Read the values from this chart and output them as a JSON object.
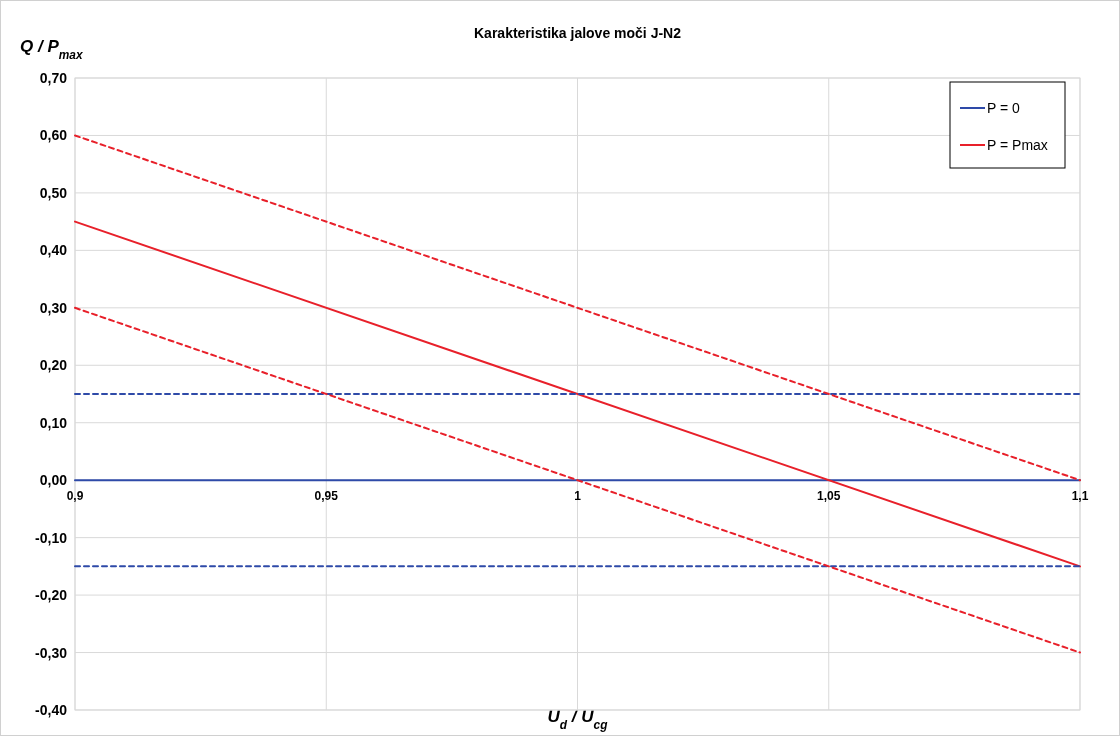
{
  "chart_data": {
    "type": "line",
    "title": "Karakteristika jalove moči J-N2",
    "xlabel": "U$_{d}$ / U$_{cg}$",
    "ylabel": "Q / P$_{max}$",
    "x": [
      0.9,
      1.1
    ],
    "series": [
      {
        "name": "P = 0",
        "color": "#2e4aa8",
        "values": [
          0,
          0
        ],
        "line_style": "solid"
      },
      {
        "name": "P = Pmax",
        "color": "#e8202a",
        "values": [
          0.45,
          -0.15
        ],
        "line_style": "solid"
      },
      {
        "color": "#2e4aa8",
        "values": [
          0.15,
          0.15
        ],
        "line_style": "dashed"
      },
      {
        "color": "#2e4aa8",
        "values": [
          -0.15,
          -0.15
        ],
        "line_style": "dashed"
      },
      {
        "color": "#e8202a",
        "values": [
          0.6,
          0
        ],
        "line_style": "dashed"
      },
      {
        "color": "#e8202a",
        "values": [
          0.3,
          -0.3
        ],
        "line_style": "dashed"
      }
    ],
    "xlim": [
      0.9,
      1.1
    ],
    "xticks": [
      {
        "value": 0.9,
        "label": "0,9"
      },
      {
        "value": 0.95,
        "label": "0,95"
      },
      {
        "value": 1,
        "label": "1"
      },
      {
        "value": 1.05,
        "label": "1,05"
      },
      {
        "value": 1.1,
        "label": "1,1"
      }
    ],
    "ylim": [
      -0.4,
      0.7
    ],
    "yticks": [
      {
        "value": -0.4,
        "label": "-0,40"
      },
      {
        "value": -0.3,
        "label": "-0,30"
      },
      {
        "value": -0.2,
        "label": "-0,20"
      },
      {
        "value": -0.1,
        "label": "-0,10"
      },
      {
        "value": 0,
        "label": "0,00"
      },
      {
        "value": 0.1,
        "label": "0,10"
      },
      {
        "value": 0.2,
        "label": "0,20"
      },
      {
        "value": 0.3,
        "label": "0,30"
      },
      {
        "value": 0.4,
        "label": "0,40"
      },
      {
        "value": 0.5,
        "label": "0,50"
      },
      {
        "value": 0.6,
        "label": "0,60"
      },
      {
        "value": 0.7,
        "label": "0,70"
      }
    ],
    "grid": true,
    "legend": "top right"
  }
}
